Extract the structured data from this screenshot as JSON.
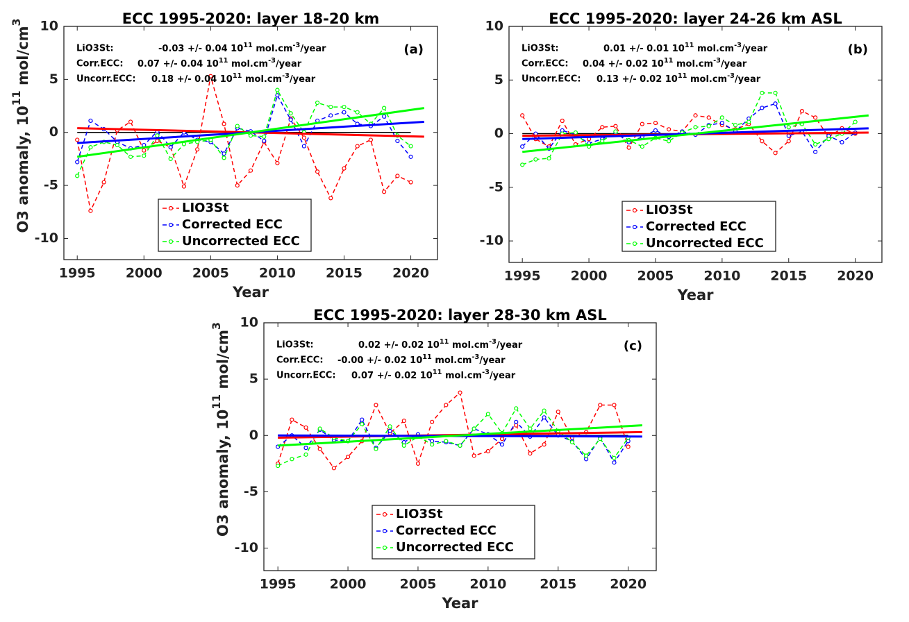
{
  "chart_data": [
    {
      "type": "line",
      "title": "ECC 1995-2020: layer 18-20 km",
      "panel_label": "(a)",
      "xlabel": "Year",
      "ylabel": [
        "O3 anomaly, 10",
        "11",
        " mol/cm",
        "3"
      ],
      "x": [
        1995,
        1996,
        1997,
        1998,
        1999,
        2000,
        2001,
        2002,
        2003,
        2004,
        2005,
        2006,
        2007,
        2008,
        2009,
        2010,
        2011,
        2012,
        2013,
        2014,
        2015,
        2016,
        2017,
        2018,
        2019,
        2020
      ],
      "xlim": [
        1994,
        2022
      ],
      "xticks": [
        1995,
        2000,
        2005,
        2010,
        2015,
        2020
      ],
      "ylim": [
        -12,
        10
      ],
      "yticks": [
        -10,
        -5,
        0,
        5,
        10
      ],
      "annotations": [
        {
          "label": "LiO3St:",
          "parts": [
            "-0.03 +/- 0.04 10",
            "11",
            " mol.cm",
            "-3",
            "/year"
          ]
        },
        {
          "label": "Corr.ECC:",
          "parts": [
            "0.07 +/- 0.04 10",
            "11",
            " mol.cm",
            "-3",
            "/year"
          ]
        },
        {
          "label": "Uncorr.ECC:",
          "parts": [
            "0.18 +/- 0.04 10",
            "11",
            " mol.cm",
            "-3",
            "/year"
          ]
        }
      ],
      "reference_line": {
        "color": "#000000",
        "x": [
          1995,
          2020
        ],
        "value": 0
      },
      "series": [
        {
          "name": "LIO3St",
          "color": "#ff0000",
          "values": [
            -0.7,
            -7.4,
            -4.7,
            0.2,
            1.0,
            -1.7,
            -0.8,
            -1.4,
            -5.1,
            -1.6,
            5.3,
            0.8,
            -5.0,
            -3.6,
            -0.9,
            -2.9,
            1.3,
            -0.5,
            -3.7,
            -6.2,
            -3.4,
            -1.3,
            -0.7,
            -5.6,
            -4.1,
            -4.7
          ],
          "trend": {
            "x": [
              1995,
              2021
            ],
            "values": [
              0.4,
              -0.4
            ]
          }
        },
        {
          "name": "Corrected ECC",
          "color": "#0000ff",
          "values": [
            -2.8,
            1.1,
            0.3,
            -0.9,
            -1.5,
            -1.2,
            0.1,
            -1.4,
            0.0,
            -0.7,
            -0.9,
            -2.0,
            0.4,
            0.1,
            -0.8,
            3.5,
            1.2,
            -1.3,
            1.1,
            1.6,
            1.9,
            0.8,
            0.6,
            1.5,
            -0.8,
            -2.3
          ],
          "trend": {
            "x": [
              1995,
              2021
            ],
            "values": [
              -1.0,
              1.0
            ]
          }
        },
        {
          "name": "Uncorrected ECC",
          "color": "#00ff00",
          "values": [
            -4.1,
            -1.4,
            -0.9,
            -1.2,
            -2.3,
            -2.2,
            -0.3,
            -2.5,
            -1.1,
            -0.9,
            -0.7,
            -2.4,
            0.6,
            -0.3,
            -0.4,
            4.0,
            1.8,
            0.0,
            2.8,
            2.4,
            2.4,
            1.9,
            0.8,
            2.3,
            -0.3,
            -1.3
          ],
          "trend": {
            "x": [
              1995,
              2021
            ],
            "values": [
              -2.3,
              2.3
            ]
          }
        }
      ]
    },
    {
      "type": "line",
      "title": "ECC 1995-2020: layer 24-26 km ASL",
      "panel_label": "(b)",
      "xlabel": "Year",
      "x": [
        1995,
        1996,
        1997,
        1998,
        1999,
        2000,
        2001,
        2002,
        2003,
        2004,
        2005,
        2006,
        2007,
        2008,
        2009,
        2010,
        2011,
        2012,
        2013,
        2014,
        2015,
        2016,
        2017,
        2018,
        2019,
        2020
      ],
      "xlim": [
        1994,
        2022
      ],
      "xticks": [
        1995,
        2000,
        2005,
        2010,
        2015,
        2020
      ],
      "ylim": [
        -12,
        10
      ],
      "yticks": [
        -10,
        -5,
        0,
        5,
        10
      ],
      "annotations": [
        {
          "label": "LiO3St:",
          "parts": [
            "0.01 +/- 0.01 10",
            "11",
            " mol.cm",
            "-3",
            "/year"
          ]
        },
        {
          "label": "Corr.ECC:",
          "parts": [
            "0.04 +/- 0.02 10",
            "11",
            " mol.cm",
            "-3",
            "/year"
          ]
        },
        {
          "label": "Uncorr.ECC:",
          "parts": [
            "0.13 +/- 0.02 10",
            "11",
            " mol.cm",
            "-3",
            "/year"
          ]
        }
      ],
      "reference_line": {
        "color": "#000000",
        "x": [
          1995,
          2020
        ],
        "value": 0
      },
      "series": [
        {
          "name": "LIO3St",
          "color": "#ff0000",
          "values": [
            1.7,
            -0.5,
            -1.2,
            1.2,
            -1.0,
            -0.5,
            0.6,
            0.7,
            -1.3,
            0.9,
            1.0,
            0.4,
            0.2,
            1.7,
            1.5,
            0.8,
            0.4,
            0.9,
            -0.7,
            -1.8,
            -0.7,
            2.1,
            1.5,
            -0.3,
            0.5,
            0.0
          ],
          "trend": {
            "x": [
              1995,
              2021
            ],
            "values": [
              -0.2,
              0.1
            ]
          }
        },
        {
          "name": "Corrected ECC",
          "color": "#0000ff",
          "values": [
            -1.2,
            0.0,
            -1.4,
            0.3,
            -0.1,
            -0.9,
            -0.5,
            0.1,
            -0.8,
            -0.3,
            0.3,
            -0.3,
            0.2,
            -0.1,
            0.8,
            1.0,
            0.2,
            1.4,
            2.4,
            2.8,
            -0.2,
            0.2,
            -1.7,
            -0.2,
            -0.8,
            0.1
          ],
          "trend": {
            "x": [
              1995,
              2021
            ],
            "values": [
              -0.5,
              0.5
            ]
          }
        },
        {
          "name": "Uncorrected ECC",
          "color": "#00ff00",
          "values": [
            -2.9,
            -2.4,
            -2.3,
            0.0,
            0.1,
            -1.2,
            -0.7,
            0.2,
            -0.6,
            -1.2,
            -0.4,
            -0.7,
            0.1,
            0.6,
            0.7,
            1.5,
            0.8,
            1.1,
            3.8,
            3.8,
            0.6,
            0.9,
            -1.0,
            -0.5,
            0.0,
            1.1
          ],
          "trend": {
            "x": [
              1995,
              2021
            ],
            "values": [
              -1.7,
              1.7
            ]
          }
        }
      ]
    },
    {
      "type": "line",
      "title": "ECC 1995-2020: layer 28-30 km ASL",
      "panel_label": "(c)",
      "xlabel": "Year",
      "ylabel": [
        "O3 anomaly, 10",
        "11",
        " mol/cm",
        "3"
      ],
      "x": [
        1995,
        1996,
        1997,
        1998,
        1999,
        2000,
        2001,
        2002,
        2003,
        2004,
        2005,
        2006,
        2007,
        2008,
        2009,
        2010,
        2011,
        2012,
        2013,
        2014,
        2015,
        2016,
        2017,
        2018,
        2019,
        2020
      ],
      "xlim": [
        1994,
        2022
      ],
      "xticks": [
        1995,
        2000,
        2005,
        2010,
        2015,
        2020
      ],
      "ylim": [
        -12,
        10
      ],
      "yticks": [
        -10,
        -5,
        0,
        5,
        10
      ],
      "annotations": [
        {
          "label": "LiO3St:",
          "parts": [
            "0.02 +/- 0.02 10",
            "11",
            " mol.cm",
            "-3",
            "/year"
          ]
        },
        {
          "label": "Corr.ECC:",
          "parts": [
            "-0.00 +/- 0.02 10",
            "11",
            " mol.cm",
            "-3",
            "/year"
          ]
        },
        {
          "label": "Uncorr.ECC:",
          "parts": [
            "0.07 +/- 0.02 10",
            "11",
            " mol.cm",
            "-3",
            "/year"
          ]
        }
      ],
      "reference_line": {
        "color": "#000000",
        "x": [
          1995,
          2020
        ],
        "value": 0
      },
      "series": [
        {
          "name": "LIO3St",
          "color": "#ff0000",
          "values": [
            -2.5,
            1.4,
            0.7,
            -1.2,
            -2.9,
            -1.9,
            -0.5,
            2.7,
            0.2,
            1.3,
            -2.5,
            1.2,
            2.7,
            3.8,
            -1.8,
            -1.4,
            -0.3,
            0.9,
            -1.6,
            -0.8,
            2.1,
            -0.2,
            0.3,
            2.7,
            2.7,
            -1.0
          ],
          "trend": {
            "x": [
              1995,
              2021
            ],
            "values": [
              -0.2,
              0.3
            ]
          }
        },
        {
          "name": "Corrected ECC",
          "color": "#0000ff",
          "values": [
            -1.0,
            0.0,
            -1.1,
            0.5,
            -0.4,
            -0.5,
            1.4,
            -1.1,
            0.4,
            -0.6,
            0.1,
            -0.5,
            -0.6,
            -0.9,
            0.6,
            0.1,
            -0.8,
            1.2,
            -0.1,
            1.6,
            0.0,
            -0.5,
            -2.1,
            -0.2,
            -2.4,
            -0.5
          ],
          "trend": {
            "x": [
              1995,
              2021
            ],
            "values": [
              0.0,
              -0.1
            ]
          }
        },
        {
          "name": "Uncorrected ECC",
          "color": "#00ff00",
          "values": [
            -2.7,
            -2.1,
            -1.7,
            0.6,
            -0.2,
            -0.5,
            1.0,
            -1.2,
            0.8,
            -0.9,
            -0.1,
            -0.8,
            -0.5,
            -0.9,
            0.6,
            1.9,
            0.2,
            2.4,
            0.6,
            2.2,
            0.4,
            -0.6,
            -1.8,
            -0.3,
            -2.0,
            -0.2
          ],
          "trend": {
            "x": [
              1995,
              2021
            ],
            "values": [
              -0.9,
              0.9
            ]
          }
        }
      ]
    }
  ]
}
